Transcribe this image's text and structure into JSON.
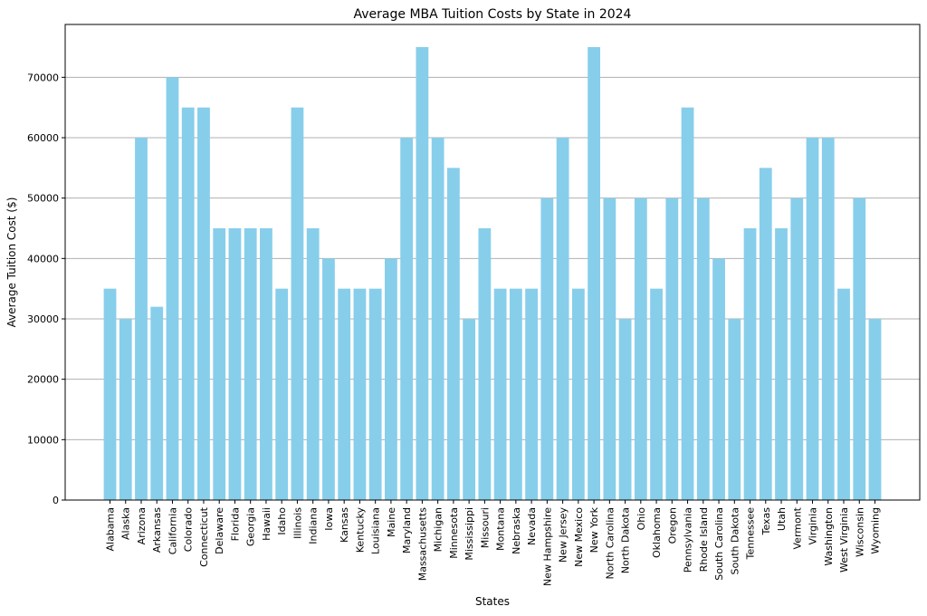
{
  "chart_data": {
    "type": "bar",
    "title": "Average MBA Tuition Costs by State in 2024",
    "xlabel": "States",
    "ylabel": "Average Tuition Cost ($)",
    "ylim": [
      0,
      78750
    ],
    "yticks": [
      0,
      10000,
      20000,
      30000,
      40000,
      50000,
      60000,
      70000
    ],
    "ytick_labels": [
      "0",
      "10000",
      "20000",
      "30000",
      "40000",
      "50000",
      "60000",
      "70000"
    ],
    "grid": "horizontal",
    "bar_color": "#87ceeb",
    "categories": [
      "Alabama",
      "Alaska",
      "Arizona",
      "Arkansas",
      "California",
      "Colorado",
      "Connecticut",
      "Delaware",
      "Florida",
      "Georgia",
      "Hawaii",
      "Idaho",
      "Illinois",
      "Indiana",
      "Iowa",
      "Kansas",
      "Kentucky",
      "Louisiana",
      "Maine",
      "Maryland",
      "Massachusetts",
      "Michigan",
      "Minnesota",
      "Mississippi",
      "Missouri",
      "Montana",
      "Nebraska",
      "Nevada",
      "New Hampshire",
      "New Jersey",
      "New Mexico",
      "New York",
      "North Carolina",
      "North Dakota",
      "Ohio",
      "Oklahoma",
      "Oregon",
      "Pennsylvania",
      "Rhode Island",
      "South Carolina",
      "South Dakota",
      "Tennessee",
      "Texas",
      "Utah",
      "Vermont",
      "Virginia",
      "Washington",
      "West Virginia",
      "Wisconsin",
      "Wyoming"
    ],
    "values": [
      35000,
      30000,
      60000,
      32000,
      70000,
      65000,
      65000,
      45000,
      45000,
      45000,
      45000,
      35000,
      65000,
      45000,
      40000,
      35000,
      35000,
      35000,
      40000,
      60000,
      75000,
      60000,
      55000,
      30000,
      45000,
      35000,
      35000,
      35000,
      50000,
      60000,
      35000,
      75000,
      50000,
      30000,
      50000,
      35000,
      50000,
      65000,
      50000,
      40000,
      30000,
      45000,
      55000,
      45000,
      50000,
      60000,
      60000,
      35000,
      50000,
      30000
    ]
  }
}
